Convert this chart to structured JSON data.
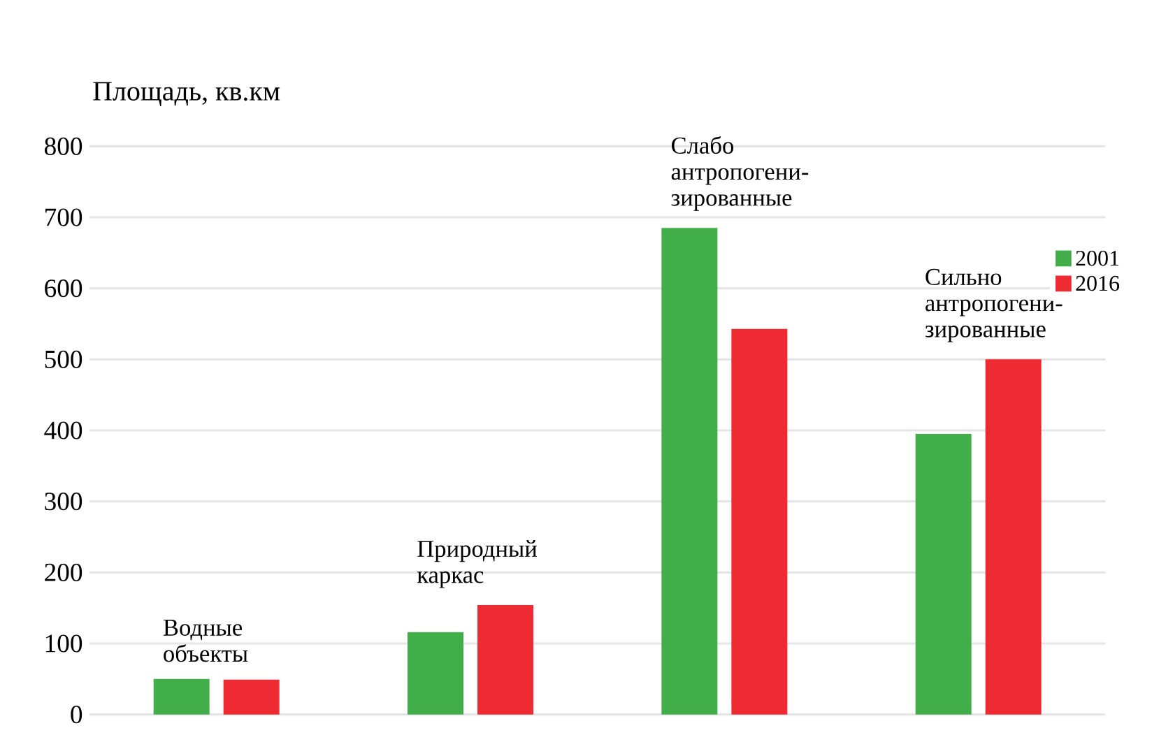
{
  "chart_data": {
    "type": "bar",
    "ylabel": "Площадь, кв.км",
    "categories": [
      "Водные объекты",
      "Природный каркас",
      "Слабо антропогени-зированные",
      "Сильно антропогени-зированные"
    ],
    "series": [
      {
        "name": "2001",
        "color": "#41ae49",
        "values": [
          50,
          116,
          685,
          395
        ]
      },
      {
        "name": "2016",
        "color": "#ee2a32",
        "values": [
          49,
          154,
          543,
          500
        ]
      }
    ],
    "ylim": [
      0,
      800
    ],
    "yticks": [
      0,
      100,
      200,
      300,
      400,
      500,
      600,
      700,
      800
    ],
    "grid": "y",
    "legend": "top right"
  }
}
